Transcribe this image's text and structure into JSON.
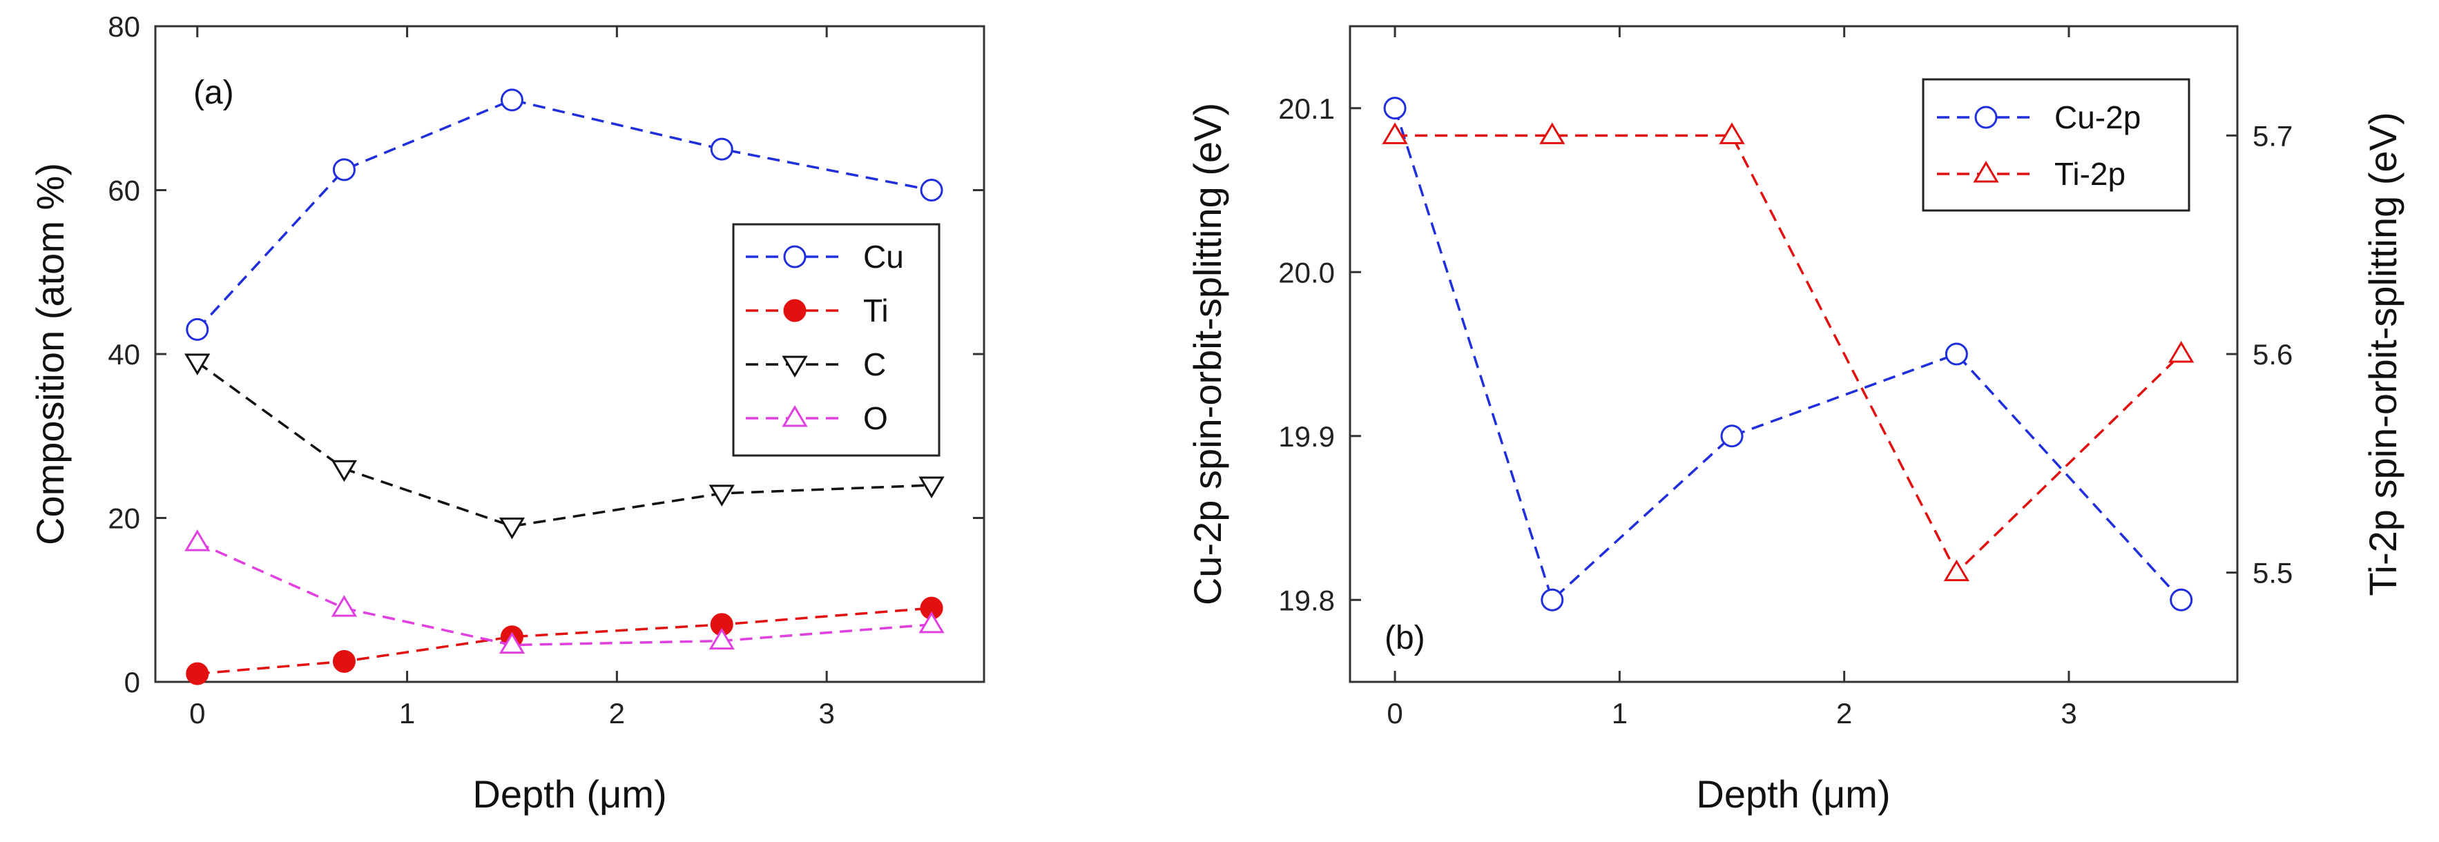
{
  "chart_data": [
    {
      "type": "line",
      "panel_label": "(a)",
      "xlabel": "Depth (μm)",
      "ylabel": "Composition (atom %)",
      "xlim": [
        -0.2,
        3.75
      ],
      "ylim": [
        0,
        80
      ],
      "xticks": [
        0,
        1,
        2,
        3
      ],
      "yticks": [
        0,
        20,
        40,
        60,
        80
      ],
      "legend_position": "center-right",
      "series": [
        {
          "name": "Cu",
          "color": "#1f2fdd",
          "marker": "circle-open",
          "x": [
            0,
            0.7,
            1.5,
            2.5,
            3.5
          ],
          "y": [
            43,
            62.5,
            71,
            65,
            60
          ]
        },
        {
          "name": "Ti",
          "color": "#e31010",
          "marker": "circle-filled",
          "x": [
            0,
            0.7,
            1.5,
            2.5,
            3.5
          ],
          "y": [
            1,
            2.5,
            5.5,
            7,
            9
          ]
        },
        {
          "name": "C",
          "color": "#111111",
          "marker": "triangle-down-open",
          "x": [
            0,
            0.7,
            1.5,
            2.5,
            3.5
          ],
          "y": [
            39,
            26,
            19,
            23,
            24
          ]
        },
        {
          "name": "O",
          "color": "#e040e0",
          "marker": "triangle-up-open",
          "x": [
            0,
            0.7,
            1.5,
            2.5,
            3.5
          ],
          "y": [
            17,
            9,
            4.5,
            5,
            7
          ]
        }
      ]
    },
    {
      "type": "line",
      "panel_label": "(b)",
      "xlabel": "Depth (μm)",
      "ylabel_left": "Cu-2p spin-orbit-splitting (eV)",
      "ylabel_right": "Ti-2p spin-orbit-splitting (eV)",
      "xlim": [
        -0.2,
        3.75
      ],
      "ylim_left": [
        19.75,
        20.15
      ],
      "ylim_right": [
        5.45,
        5.75
      ],
      "xticks": [
        0,
        1,
        2,
        3
      ],
      "yticks_left": [
        "19.8",
        "19.9",
        "20.0",
        "20.1"
      ],
      "yticks_right": [
        "5.5",
        "5.6",
        "5.7"
      ],
      "legend_position": "top-right",
      "series": [
        {
          "name": "Cu-2p",
          "axis": "left",
          "color": "#1f2fdd",
          "marker": "circle-open",
          "x": [
            0,
            0.7,
            1.5,
            2.5,
            3.5
          ],
          "y": [
            20.1,
            19.8,
            19.9,
            19.95,
            19.8
          ]
        },
        {
          "name": "Ti-2p",
          "axis": "right",
          "color": "#e31010",
          "marker": "triangle-up-open",
          "x": [
            0,
            0.7,
            1.5,
            2.5,
            3.5
          ],
          "y": [
            5.7,
            5.7,
            5.7,
            5.5,
            5.6
          ]
        }
      ]
    }
  ]
}
